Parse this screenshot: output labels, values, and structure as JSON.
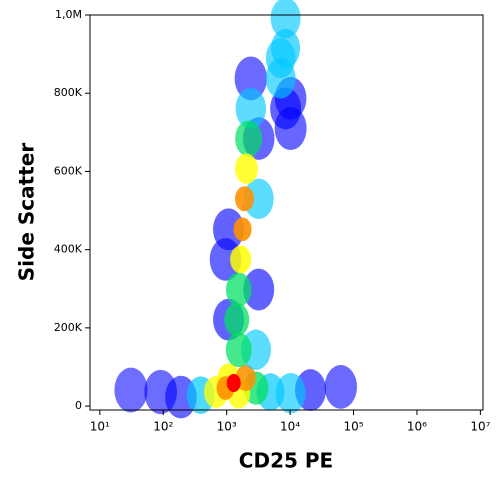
{
  "chart_data": {
    "type": "density-scatter",
    "x_label": "CD25 PE",
    "y_label": "Side Scatter",
    "x_log": true,
    "xlim": [
      7,
      11000000
    ],
    "xticks": [
      {
        "value": 10,
        "label": "10¹"
      },
      {
        "value": 100,
        "label": "10²"
      },
      {
        "value": 1000,
        "label": "10³"
      },
      {
        "value": 10000,
        "label": "10⁴"
      },
      {
        "value": 100000,
        "label": "10⁵"
      },
      {
        "value": 1000000,
        "label": "10⁶"
      },
      {
        "value": 10000000,
        "label": "10⁷"
      }
    ],
    "ylim": [
      -10000,
      1000000
    ],
    "yticks": [
      0,
      {
        "value": 200000,
        "label": "200K"
      },
      {
        "value": 400000,
        "label": "400K"
      },
      {
        "value": 600000,
        "label": "600K"
      },
      {
        "value": 800000,
        "label": "800K"
      },
      {
        "value": 1000000,
        "label": "1,0M"
      }
    ],
    "colorscale": [
      "#0000ff",
      "#00c8ff",
      "#00e060",
      "#ffff00",
      "#ff9000",
      "#ff0000"
    ],
    "x": [
      63000,
      31,
      91,
      190,
      21000,
      10200,
      390,
      4900,
      2900,
      680,
      1550,
      1070,
      2000,
      960,
      1290,
      2400,
      3200,
      960,
      3200,
      1070,
      3200,
      1070,
      2900,
      2400,
      2220,
      1550,
      1550,
      1440,
      2050,
      1660,
      1910,
      1780,
      10200,
      10200,
      8500,
      7100,
      7100,
      8500,
      8500
    ],
    "y": [
      49000,
      41000,
      36000,
      23000,
      41000,
      33000,
      28000,
      36000,
      46000,
      36000,
      33000,
      72000,
      72000,
      46000,
      59000,
      838000,
      684000,
      375000,
      298000,
      221000,
      530000,
      452000,
      144000,
      761000,
      684000,
      144000,
      298000,
      221000,
      607000,
      375000,
      530000,
      452000,
      710000,
      787000,
      761000,
      838000,
      890000,
      992000,
      915000
    ],
    "density": [
      0.08,
      0.04,
      0.06,
      0.12,
      0.15,
      0.2,
      0.3,
      0.3,
      0.45,
      0.5,
      0.55,
      0.6,
      0.7,
      0.8,
      1,
      0.08,
      0.12,
      0.12,
      0.15,
      0.15,
      0.2,
      0.15,
      0.2,
      0.18,
      0.35,
      0.4,
      0.42,
      0.45,
      0.55,
      0.65,
      0.75,
      0.8,
      0.1,
      0.12,
      0.15,
      0.2,
      0.22,
      0.2,
      0.25
    ]
  }
}
